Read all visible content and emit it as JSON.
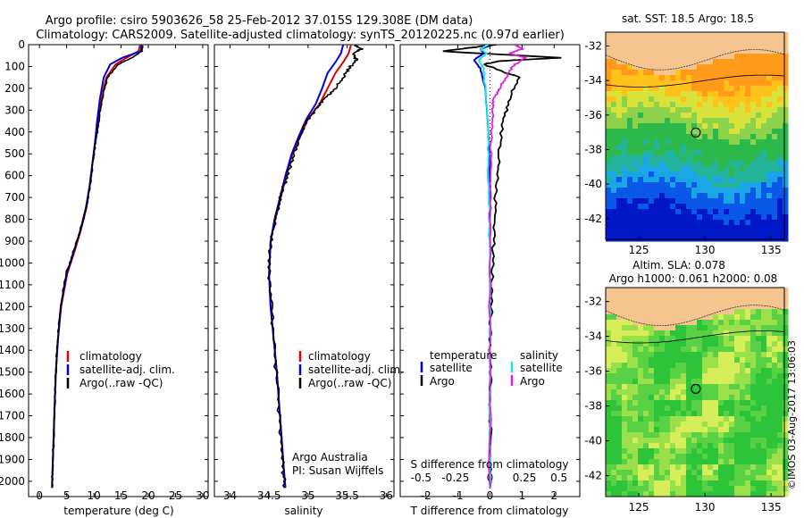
{
  "header": {
    "line1": "Argo profile: csiro 5903626_58 25-Feb-2012 37.015S 129.308E (DM data)",
    "line2": "Climatology: CARS2009. Satellite-adjusted climatology: synTS_20120225.nc (0.97d earlier)"
  },
  "colors": {
    "climatology": "#dd0000",
    "satellite": "#0000dd",
    "argo": "#000000",
    "salinity_satellite": "#22e0e8",
    "salinity_argo": "#e020e0",
    "land": "#f5c48f"
  },
  "chart_data": [
    {
      "type": "line",
      "id": "temperature",
      "xlabel": "temperature (deg C)",
      "xlim": [
        -2,
        31
      ],
      "xticks": [
        0,
        5,
        10,
        15,
        20,
        25,
        30
      ],
      "ylim": [
        0,
        2070
      ],
      "yticks": [
        0,
        100,
        200,
        300,
        400,
        500,
        600,
        700,
        800,
        900,
        1000,
        1100,
        1200,
        1300,
        1400,
        1500,
        1600,
        1700,
        1800,
        1900,
        2000
      ],
      "legend": [
        "climatology",
        "satellite-adj. clim.",
        "Argo(..raw -QC)"
      ],
      "series": [
        {
          "name": "climatology",
          "x": [
            18.5,
            18.2,
            16.0,
            14.0,
            12.3,
            11.3,
            10.7,
            10.2,
            9.7,
            9.2,
            8.6,
            7.6,
            6.4,
            5.1,
            4.0,
            3.4,
            3.0,
            2.8,
            2.6,
            2.4,
            2.3
          ],
          "y": [
            0,
            30,
            60,
            90,
            150,
            250,
            350,
            450,
            550,
            650,
            750,
            850,
            950,
            1050,
            1200,
            1350,
            1500,
            1650,
            1800,
            1950,
            2030
          ]
        },
        {
          "name": "satellite-adj. clim.",
          "x": [
            18.8,
            18.6,
            15.2,
            13.0,
            11.8,
            11.1,
            10.6,
            10.2,
            9.7,
            9.2,
            8.5,
            7.5,
            6.3,
            5.0,
            3.9,
            3.4,
            3.0,
            2.8,
            2.6,
            2.4,
            2.3
          ],
          "y": [
            0,
            30,
            60,
            90,
            150,
            250,
            350,
            450,
            550,
            650,
            750,
            850,
            950,
            1050,
            1200,
            1350,
            1500,
            1650,
            1800,
            1950,
            2030
          ]
        },
        {
          "name": "Argo(..raw -QC)",
          "x": [
            19.0,
            18.8,
            17.0,
            14.5,
            12.5,
            11.5,
            10.9,
            10.3,
            9.8,
            9.3,
            8.6,
            7.5,
            6.2,
            4.9,
            3.9,
            3.3,
            3.0,
            2.8,
            2.6,
            2.4,
            2.3
          ],
          "y": [
            5,
            30,
            60,
            90,
            150,
            250,
            350,
            450,
            550,
            650,
            750,
            850,
            950,
            1050,
            1200,
            1350,
            1500,
            1650,
            1800,
            1950,
            2030
          ]
        }
      ]
    },
    {
      "type": "line",
      "id": "salinity",
      "xlabel": "salinity",
      "xlim": [
        33.8,
        36.1
      ],
      "xticks": [
        34,
        34.5,
        35,
        35.5,
        36
      ],
      "ylim": [
        0,
        2070
      ],
      "legend": [
        "climatology",
        "satellite-adj. clim.",
        "Argo(..raw -QC)"
      ],
      "annotation": [
        "Argo Australia",
        "PI: Susan Wijffels"
      ],
      "series": [
        {
          "name": "climatology",
          "x": [
            35.55,
            35.52,
            35.45,
            35.35,
            35.25,
            35.15,
            35.0,
            34.9,
            34.8,
            34.72,
            34.65,
            34.58,
            34.52,
            34.5,
            34.52,
            34.56,
            34.6,
            34.63,
            34.66,
            34.69,
            34.71
          ],
          "y": [
            0,
            40,
            80,
            130,
            200,
            270,
            340,
            420,
            500,
            600,
            700,
            800,
            900,
            1050,
            1200,
            1350,
            1500,
            1650,
            1800,
            1950,
            2030
          ]
        },
        {
          "name": "satellite-adj. clim.",
          "x": [
            35.45,
            35.42,
            35.35,
            35.25,
            35.18,
            35.1,
            34.98,
            34.88,
            34.79,
            34.71,
            34.64,
            34.57,
            34.52,
            34.5,
            34.52,
            34.56,
            34.6,
            34.63,
            34.66,
            34.69,
            34.71
          ],
          "y": [
            0,
            40,
            80,
            130,
            200,
            270,
            340,
            420,
            500,
            600,
            700,
            800,
            900,
            1050,
            1200,
            1350,
            1500,
            1650,
            1800,
            1950,
            2030
          ]
        },
        {
          "name": "Argo(..raw -QC)",
          "x": [
            35.6,
            35.68,
            35.58,
            35.62,
            35.52,
            35.45,
            35.35,
            35.2,
            35.1,
            34.98,
            34.9,
            34.82,
            34.75,
            34.68,
            34.62,
            34.56,
            34.51,
            34.5,
            34.53,
            34.57,
            34.61,
            34.65,
            34.68,
            34.7
          ],
          "y": [
            0,
            20,
            40,
            70,
            110,
            150,
            200,
            250,
            300,
            350,
            420,
            500,
            580,
            660,
            740,
            830,
            930,
            1050,
            1200,
            1400,
            1600,
            1800,
            1950,
            2030
          ]
        }
      ]
    },
    {
      "type": "line",
      "id": "difference",
      "xlabel": "T difference from climatology",
      "xlabel_top": "S difference from climatology",
      "xlim": [
        -2.8,
        2.8
      ],
      "xticks_T": [
        -2,
        -1,
        0,
        1,
        2
      ],
      "xticks_S": [
        -0.5,
        -0.25,
        0,
        0.25,
        0.5
      ],
      "ylim": [
        0,
        2070
      ],
      "legend_titles": [
        "temperature",
        "salinity"
      ],
      "legend": [
        "satellite",
        "Argo",
        "satellite",
        "Argo"
      ],
      "series": [
        {
          "name": "T satellite",
          "x": [
            0.1,
            -0.3,
            -0.2,
            -0.5,
            -0.3,
            -0.15,
            -0.1,
            -0.05,
            0,
            0,
            0,
            0,
            0,
            0,
            0,
            0,
            0
          ],
          "y": [
            0,
            20,
            40,
            70,
            110,
            200,
            300,
            400,
            600,
            800,
            1000,
            1200,
            1400,
            1600,
            1800,
            1950,
            2030
          ]
        },
        {
          "name": "T Argo",
          "x": [
            0.2,
            -1.5,
            2.2,
            0.3,
            -0.2,
            0.9,
            0.6,
            0.4,
            0.3,
            0.2,
            0.15,
            0.1,
            0.05,
            0.02,
            0.01,
            0,
            0
          ],
          "y": [
            0,
            30,
            60,
            75,
            90,
            150,
            250,
            350,
            500,
            650,
            800,
            950,
            1100,
            1300,
            1500,
            1800,
            2030
          ]
        },
        {
          "name": "S satellite",
          "x": [
            -0.05,
            -0.3,
            -0.1,
            -0.35,
            -0.2,
            -0.15,
            -0.1,
            -0.05,
            -0.05,
            -0.02,
            0,
            0,
            0,
            0,
            0
          ],
          "y": [
            0,
            20,
            40,
            70,
            110,
            200,
            300,
            400,
            600,
            800,
            1000,
            1200,
            1400,
            1700,
            2030
          ]
        },
        {
          "name": "S Argo",
          "x": [
            0.8,
            1.0,
            0.6,
            1.1,
            0.7,
            0.5,
            0.3,
            0.1,
            0.1,
            0.05,
            0.02,
            0,
            0,
            0
          ],
          "y": [
            0,
            20,
            40,
            60,
            100,
            150,
            200,
            250,
            300,
            400,
            600,
            800,
            1200,
            2030
          ]
        }
      ]
    },
    {
      "type": "heatmap",
      "id": "sst-map",
      "title": "sat. SST: 18.5 Argo: 18.5",
      "xticks": [
        125,
        130,
        135
      ],
      "yticks": [
        -32,
        -34,
        -36,
        -38,
        -40,
        -42
      ],
      "xlim": [
        122.5,
        136
      ],
      "ylim": [
        -43.2,
        -31.2
      ],
      "marker": [
        129.308,
        -37.015
      ]
    },
    {
      "type": "heatmap",
      "id": "sla-map",
      "title": "Altim. SLA: 0.078",
      "subtitle": "Argo h1000: 0.061 h2000: 0.08",
      "xticks": [
        125,
        130,
        135
      ],
      "yticks": [
        -32,
        -34,
        -36,
        -38,
        -40,
        -42
      ],
      "xlim": [
        122.5,
        136
      ],
      "ylim": [
        -43.2,
        -31.2
      ],
      "marker": [
        129.308,
        -37.015
      ]
    }
  ],
  "footer": {
    "credit": "©IMOS 03-Aug-2017 13:06:03"
  }
}
